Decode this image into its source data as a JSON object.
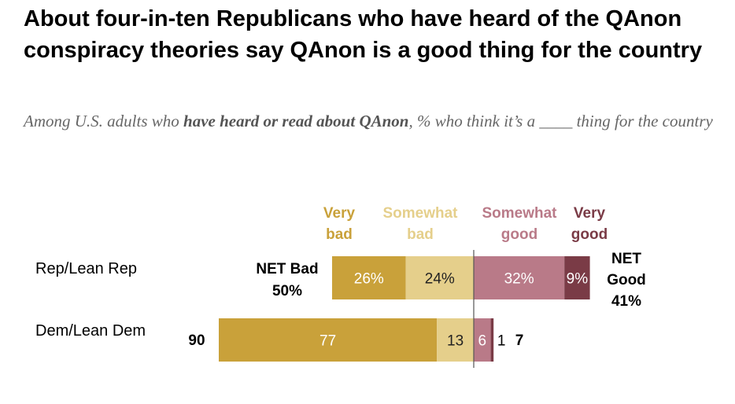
{
  "title": "About four-in-ten Republicans who have heard of the QAnon conspiracy theories say QAnon is a good thing for the country",
  "subtitle": {
    "pre": "Among U.S. adults who ",
    "bold": "have heard or read about QAnon",
    "post": ", % who think it’s a ____ thing for the country"
  },
  "chart_data": {
    "type": "bar",
    "orientation": "horizontal-diverging",
    "headers": [
      {
        "key": "very_bad",
        "lines": [
          "Very",
          "bad"
        ],
        "color": "#C9A13A"
      },
      {
        "key": "somewhat_bad",
        "lines": [
          "Somewhat",
          "bad"
        ],
        "color": "#E5CF8B"
      },
      {
        "key": "somewhat_good",
        "lines": [
          "Somewhat",
          "good"
        ],
        "color": "#B97A88"
      },
      {
        "key": "very_good",
        "lines": [
          "Very",
          "good"
        ],
        "color": "#7A3B46"
      }
    ],
    "categories": [
      "Rep/Lean Rep",
      "Dem/Lean Dem"
    ],
    "series": [
      {
        "key": "very_bad",
        "values": [
          26,
          77
        ],
        "labels": [
          "26%",
          "77"
        ]
      },
      {
        "key": "somewhat_bad",
        "values": [
          24,
          13
        ],
        "labels": [
          "24%",
          "13"
        ]
      },
      {
        "key": "somewhat_good",
        "values": [
          32,
          6
        ],
        "labels": [
          "32%",
          "6"
        ]
      },
      {
        "key": "very_good",
        "values": [
          9,
          1
        ],
        "labels": [
          "9%",
          "1"
        ]
      }
    ],
    "net_bad": {
      "values": [
        50,
        90
      ],
      "labels": [
        [
          "NET Bad",
          "50%"
        ],
        [
          "90"
        ]
      ]
    },
    "net_good": {
      "values": [
        41,
        7
      ],
      "labels": [
        [
          "NET",
          "Good",
          "41%"
        ],
        [
          "7"
        ]
      ]
    }
  }
}
